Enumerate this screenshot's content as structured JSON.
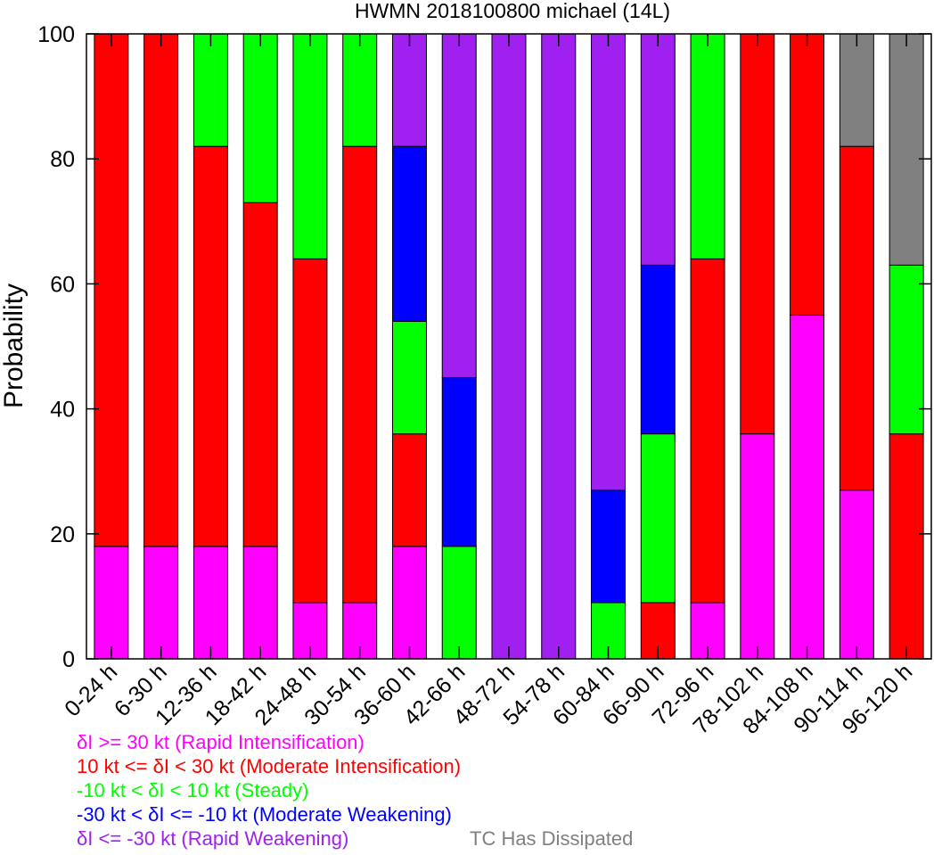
{
  "chart_data": {
    "type": "bar",
    "stacked": true,
    "title": "HWMN 2018100800 michael (14L)",
    "xlabel": "",
    "ylabel": "Probability",
    "ylim": [
      0,
      100
    ],
    "yticks": [
      0,
      20,
      40,
      60,
      80,
      100
    ],
    "grid": false,
    "legend_position": "bottom-left",
    "categories": [
      "0-24 h",
      "6-30 h",
      "12-36 h",
      "18-42 h",
      "24-48 h",
      "30-54 h",
      "36-60 h",
      "42-66 h",
      "48-72 h",
      "54-78 h",
      "60-84 h",
      "66-90 h",
      "72-96 h",
      "78-102 h",
      "84-108 h",
      "90-114 h",
      "96-120 h"
    ],
    "series": [
      {
        "name": "δI >= 30 kt (Rapid Intensification)",
        "color": "#ff00ff",
        "values": [
          18,
          18,
          18,
          18,
          9,
          9,
          18,
          0,
          0,
          0,
          0,
          0,
          9,
          36,
          55,
          27,
          0
        ]
      },
      {
        "name": "10 kt <= δI < 30 kt (Moderate Intensification)",
        "color": "#ff0000",
        "values": [
          82,
          82,
          64,
          55,
          55,
          73,
          18,
          0,
          0,
          0,
          0,
          9,
          55,
          64,
          45,
          55,
          36
        ]
      },
      {
        "name": "-10 kt < δI < 10 kt (Steady)",
        "color": "#00ff00",
        "values": [
          0,
          0,
          18,
          27,
          36,
          18,
          18,
          18,
          0,
          0,
          9,
          27,
          36,
          0,
          0,
          0,
          27
        ]
      },
      {
        "name": "-30 kt < δI <= -10 kt (Moderate Weakening)",
        "color": "#0000ff",
        "values": [
          0,
          0,
          0,
          0,
          0,
          0,
          28,
          27,
          0,
          0,
          18,
          27,
          0,
          0,
          0,
          0,
          0
        ]
      },
      {
        "name": "δI <= -30 kt (Rapid Weakening)",
        "color": "#a020f0",
        "values": [
          0,
          0,
          0,
          0,
          0,
          0,
          18,
          55,
          100,
          100,
          73,
          37,
          0,
          0,
          0,
          0,
          0
        ]
      },
      {
        "name": "TC Has Dissipated",
        "color": "#808080",
        "values": [
          0,
          0,
          0,
          0,
          0,
          0,
          0,
          0,
          0,
          0,
          0,
          0,
          0,
          0,
          0,
          18,
          37
        ]
      }
    ]
  },
  "legend": [
    {
      "prefix": "δ",
      "text": "I >= 30 kt (Rapid Intensification)",
      "color": "#ff00ff"
    },
    {
      "prefix": "10 kt <= δ",
      "text": "I < 30 kt (Moderate Intensification)",
      "color": "#ff0000"
    },
    {
      "prefix": "-10 kt < δ",
      "text": "I < 10 kt (Steady)",
      "color": "#00ff00"
    },
    {
      "prefix": "-30 kt < δ",
      "text": "I <= -10 kt (Moderate Weakening)",
      "color": "#0000ff"
    },
    {
      "prefix": "δ",
      "text": "I <= -30 kt (Rapid Weakening)",
      "color": "#a020f0"
    },
    {
      "prefix": "",
      "text": "TC Has Dissipated",
      "color": "#808080"
    }
  ]
}
